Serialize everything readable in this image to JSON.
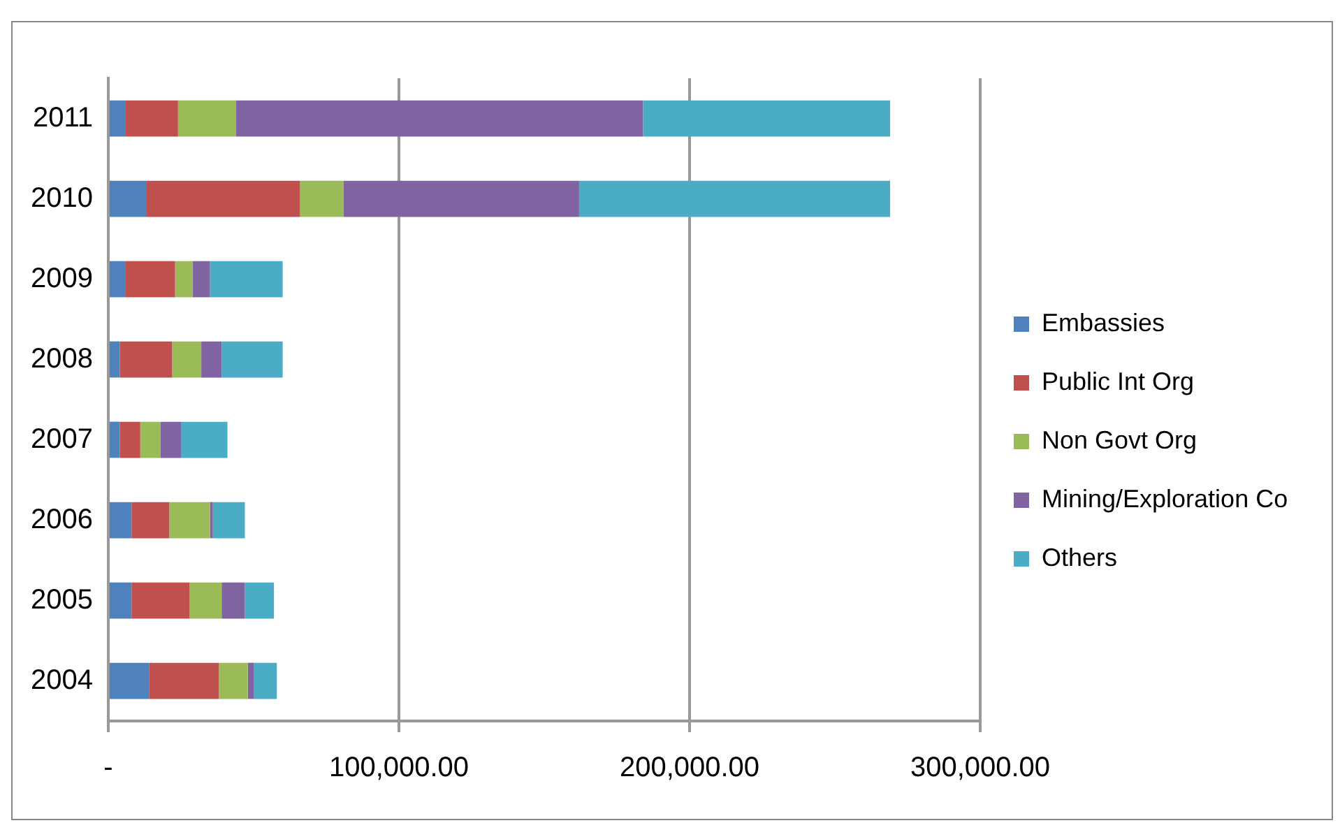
{
  "chart_data": {
    "type": "bar",
    "orientation": "horizontal",
    "stacked": true,
    "categories": [
      "2011",
      "2010",
      "2009",
      "2008",
      "2007",
      "2006",
      "2005",
      "2004"
    ],
    "series": [
      {
        "name": "Embassies",
        "color": "#4f81bd",
        "values": [
          6000,
          13000,
          6000,
          4000,
          4000,
          8000,
          8000,
          14000
        ]
      },
      {
        "name": "Public Int Org",
        "color": "#c0504d",
        "values": [
          18000,
          53000,
          17000,
          18000,
          7000,
          13000,
          20000,
          24000
        ]
      },
      {
        "name": "Non Govt Org",
        "color": "#9bbb59",
        "values": [
          20000,
          15000,
          6000,
          10000,
          7000,
          14000,
          11000,
          10000
        ]
      },
      {
        "name": "Mining/Exploration Co",
        "color": "#8064a2",
        "values": [
          140000,
          81000,
          6000,
          7000,
          7000,
          1000,
          8000,
          2000
        ]
      },
      {
        "name": "Others",
        "color": "#4bacc6",
        "values": [
          85000,
          107000,
          25000,
          21000,
          16000,
          11000,
          10000,
          8000
        ]
      }
    ],
    "xlim": [
      0,
      300000
    ],
    "xticks": [
      {
        "value": 0,
        "label": "-"
      },
      {
        "value": 100000,
        "label": "100,000.00"
      },
      {
        "value": 200000,
        "label": "200,000.00"
      },
      {
        "value": 300000,
        "label": "300,000.00"
      }
    ],
    "grid": "x",
    "legend": "right"
  }
}
